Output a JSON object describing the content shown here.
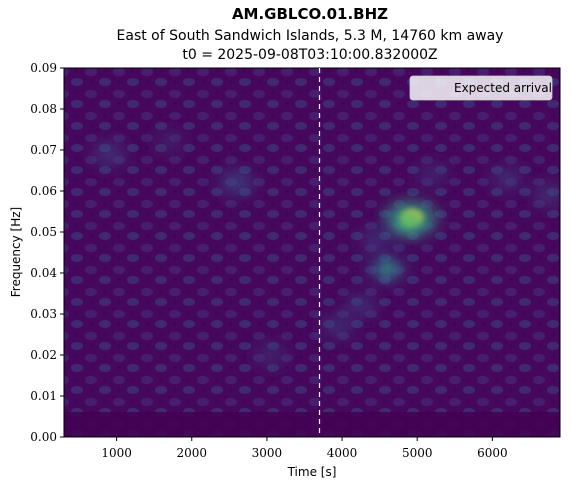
{
  "chart_data": {
    "type": "heatmap",
    "title": "AM.GBLCO.01.BHZ",
    "subtitle": "East of South Sandwich Islands, 5.3 M, 14760 km away",
    "subtitle2": "t0 = 2025-09-08T03:10:00.832000Z",
    "xlabel": "Time [s]",
    "ylabel": "Frequency [Hz]",
    "xlim": [
      300,
      6900
    ],
    "ylim": [
      0,
      0.09
    ],
    "x_ticks": [
      1000,
      2000,
      3000,
      4000,
      5000,
      6000
    ],
    "x_tick_labels": [
      "1000",
      "2000",
      "3000",
      "4000",
      "5000",
      "6000"
    ],
    "y_ticks": [
      0,
      0.01,
      0.02,
      0.03,
      0.04,
      0.05,
      0.06,
      0.07,
      0.08,
      0.09
    ],
    "y_tick_labels": [
      "0.00",
      "0.01",
      "0.02",
      "0.03",
      "0.04",
      "0.05",
      "0.06",
      "0.07",
      "0.08",
      "0.09"
    ],
    "colormap": "viridis",
    "expected_arrival_time": 3700,
    "legend": {
      "label": "Expected arrival",
      "placement": "upper right"
    },
    "hotspots": [
      {
        "time": 4930,
        "freq": 0.0535,
        "intensity": 1.0
      },
      {
        "time": 4880,
        "freq": 0.0525,
        "intensity": 0.75
      },
      {
        "time": 4600,
        "freq": 0.041,
        "intensity": 0.55
      },
      {
        "time": 4450,
        "freq": 0.048,
        "intensity": 0.35
      },
      {
        "time": 4250,
        "freq": 0.032,
        "intensity": 0.35
      },
      {
        "time": 3950,
        "freq": 0.027,
        "intensity": 0.35
      },
      {
        "time": 2600,
        "freq": 0.062,
        "intensity": 0.45
      },
      {
        "time": 900,
        "freq": 0.069,
        "intensity": 0.38
      },
      {
        "time": 5200,
        "freq": 0.064,
        "intensity": 0.3
      },
      {
        "time": 6200,
        "freq": 0.063,
        "intensity": 0.35
      },
      {
        "time": 6750,
        "freq": 0.059,
        "intensity": 0.35
      },
      {
        "time": 3050,
        "freq": 0.02,
        "intensity": 0.3
      },
      {
        "time": 1700,
        "freq": 0.072,
        "intensity": 0.25
      }
    ]
  }
}
